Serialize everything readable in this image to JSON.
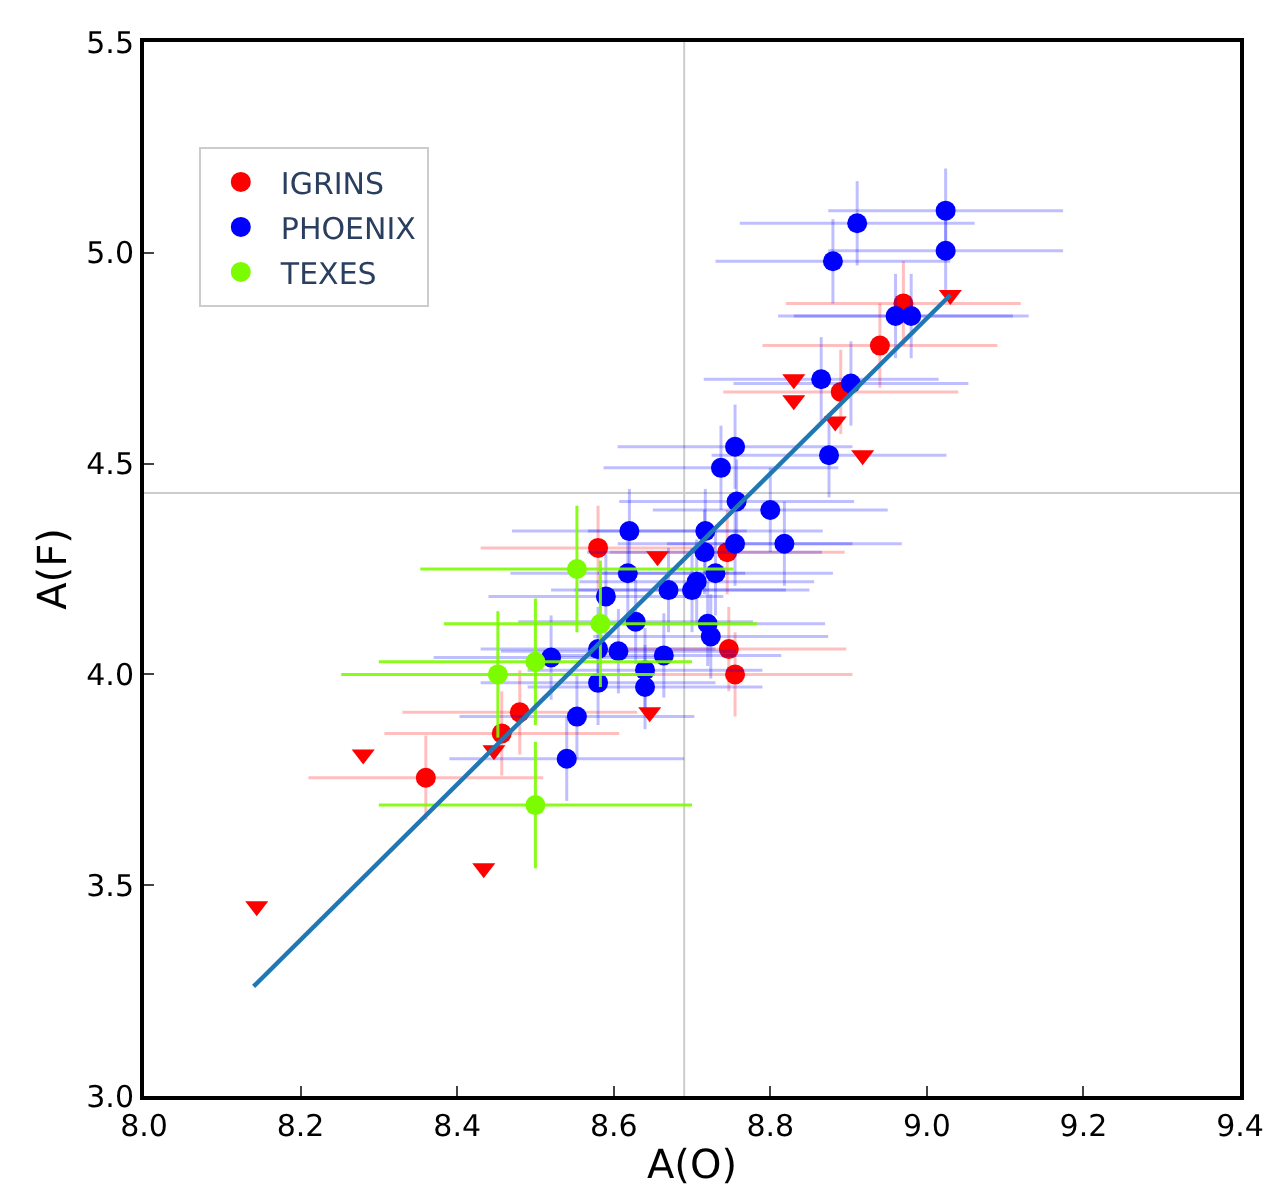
{
  "chart_data": {
    "type": "scatter",
    "xlabel": "A(O)",
    "ylabel": "A(F)",
    "xlim": [
      8.0,
      9.4
    ],
    "ylim": [
      3.0,
      5.5
    ],
    "xticks": [
      {
        "value": 8.0,
        "label": "8.0"
      },
      {
        "value": 8.2,
        "label": "8.2"
      },
      {
        "value": 8.4,
        "label": "8.4"
      },
      {
        "value": 8.6,
        "label": "8.6"
      },
      {
        "value": 8.8,
        "label": "8.8"
      },
      {
        "value": 9.0,
        "label": "9.0"
      },
      {
        "value": 9.2,
        "label": "9.2"
      },
      {
        "value": 9.4,
        "label": "9.4"
      }
    ],
    "yticks": [
      {
        "value": 3.0,
        "label": "3.0"
      },
      {
        "value": 3.5,
        "label": "3.5"
      },
      {
        "value": 4.0,
        "label": "4.0"
      },
      {
        "value": 4.5,
        "label": "4.5"
      },
      {
        "value": 5.0,
        "label": "5.0"
      },
      {
        "value": 5.5,
        "label": "5.5"
      }
    ],
    "grid": false,
    "legend": "top left",
    "ref_lines": [
      {
        "axis": "x",
        "value": 8.69,
        "color": "#cccccc"
      },
      {
        "axis": "y",
        "value": 4.43,
        "color": "#cccccc"
      }
    ],
    "series": [
      {
        "name": "IGRINS",
        "color": "#ff0000",
        "marker": "circle",
        "x": [
          8.36,
          8.457,
          8.48,
          8.58,
          8.747,
          8.755,
          8.745,
          8.97,
          8.94,
          8.89
        ],
        "values": [
          3.755,
          3.86,
          3.91,
          4.3,
          4.06,
          4.0,
          4.29,
          4.88,
          4.78,
          4.67
        ],
        "xerrors": [
          0.15,
          0.15,
          0.15,
          0.15,
          0.15,
          0.15,
          0.15,
          0.15,
          0.15,
          0.15
        ],
        "errors": [
          0.1,
          0.1,
          0.1,
          0.1,
          0.1,
          0.1,
          0.1,
          0.1,
          0.1,
          0.1
        ]
      },
      {
        "name": "PHOENIX",
        "color": "#0000ff",
        "marker": "circle",
        "x": [
          8.911,
          9.024,
          9.024,
          8.88,
          8.96,
          8.98,
          8.865,
          8.903,
          8.875,
          8.755,
          8.737,
          8.8,
          8.757,
          8.818,
          8.755,
          8.717,
          8.62,
          8.618,
          8.59,
          8.628,
          8.58,
          8.606,
          8.52,
          8.664,
          8.64,
          8.64,
          8.58,
          8.553,
          8.54,
          8.706,
          8.7,
          8.716,
          8.73,
          8.67,
          8.72,
          8.724
        ],
        "values": [
          5.07,
          5.1,
          5.005,
          4.98,
          4.85,
          4.85,
          4.7,
          4.69,
          4.52,
          4.54,
          4.49,
          4.39,
          4.41,
          4.31,
          4.31,
          4.34,
          4.34,
          4.24,
          4.185,
          4.125,
          4.06,
          4.055,
          4.04,
          4.045,
          4.01,
          3.97,
          3.98,
          3.9,
          3.8,
          4.22,
          4.2,
          4.29,
          4.24,
          4.2,
          4.12,
          4.09
        ],
        "xerrors": [
          0.15,
          0.15,
          0.15,
          0.15,
          0.15,
          0.15,
          0.15,
          0.15,
          0.15,
          0.15,
          0.15,
          0.15,
          0.15,
          0.15,
          0.15,
          0.15,
          0.15,
          0.15,
          0.15,
          0.15,
          0.15,
          0.15,
          0.15,
          0.15,
          0.15,
          0.15,
          0.15,
          0.15,
          0.15,
          0.15,
          0.15,
          0.15,
          0.15,
          0.15,
          0.15,
          0.15
        ],
        "errors": [
          0.1,
          0.1,
          0.1,
          0.1,
          0.1,
          0.1,
          0.1,
          0.1,
          0.1,
          0.1,
          0.1,
          0.1,
          0.1,
          0.1,
          0.1,
          0.1,
          0.1,
          0.1,
          0.1,
          0.1,
          0.1,
          0.1,
          0.1,
          0.1,
          0.1,
          0.1,
          0.1,
          0.1,
          0.1,
          0.1,
          0.1,
          0.1,
          0.1,
          0.1,
          0.1,
          0.1
        ]
      },
      {
        "name": "TEXES",
        "color": "#7cfc00",
        "marker": "circle",
        "x": [
          8.553,
          8.583,
          8.5,
          8.452,
          8.5
        ],
        "values": [
          4.25,
          4.12,
          4.03,
          4.0,
          3.69
        ],
        "xerrors": [
          0.2,
          0.2,
          0.2,
          0.2,
          0.2
        ],
        "errors": [
          0.15,
          0.15,
          0.15,
          0.15,
          0.15
        ]
      },
      {
        "color": "#ff0000",
        "marker": "triangle",
        "x": [
          8.144,
          8.28,
          8.434,
          8.447,
          8.646,
          8.656,
          8.83,
          8.83,
          8.883,
          8.918,
          9.03
        ],
        "values": [
          3.45,
          3.81,
          3.54,
          3.82,
          3.91,
          4.28,
          4.7,
          4.65,
          4.6,
          4.52,
          4.9
        ]
      },
      {
        "type": "line",
        "color": "#1f77b4",
        "marker": "none",
        "x": [
          8.14,
          9.03
        ],
        "values": [
          3.26,
          4.9
        ]
      }
    ]
  }
}
